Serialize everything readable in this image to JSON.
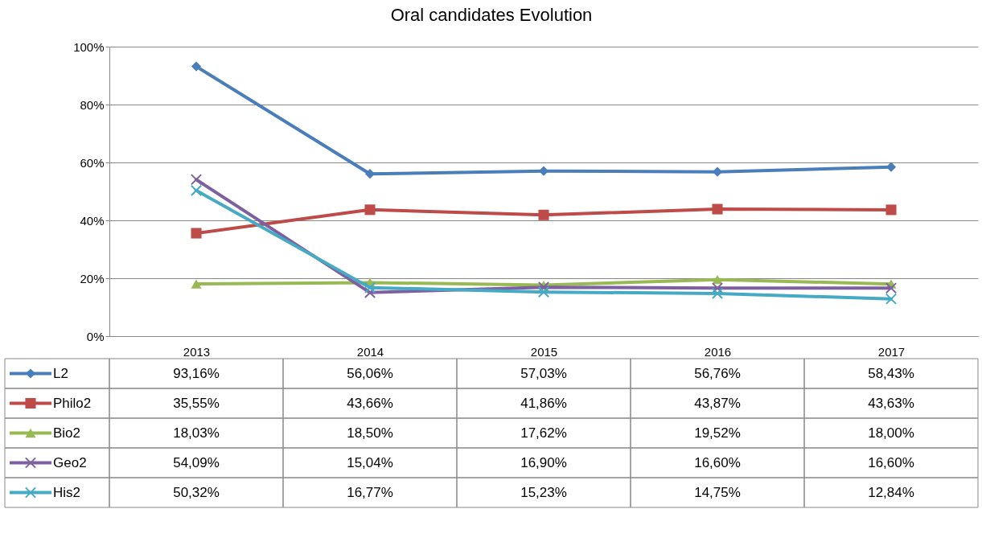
{
  "chart_data": {
    "type": "line",
    "title": "Oral candidates Evolution",
    "categories": [
      "2013",
      "2014",
      "2015",
      "2016",
      "2017"
    ],
    "series": [
      {
        "name": "L2",
        "color": "#4a7ebb",
        "marker": "diamond",
        "values": [
          93.16,
          56.06,
          57.03,
          56.76,
          58.43
        ],
        "value_labels": [
          "93,16%",
          "56,06%",
          "57,03%",
          "56,76%",
          "58,43%"
        ]
      },
      {
        "name": "Philo2",
        "color": "#be4b48",
        "marker": "square",
        "values": [
          35.55,
          43.66,
          41.86,
          43.87,
          43.63
        ],
        "value_labels": [
          "35,55%",
          "43,66%",
          "41,86%",
          "43,87%",
          "43,63%"
        ]
      },
      {
        "name": "Bio2",
        "color": "#98b954",
        "marker": "triangle",
        "values": [
          18.03,
          18.5,
          17.62,
          19.52,
          18.0
        ],
        "value_labels": [
          "18,03%",
          "18,50%",
          "17,62%",
          "19,52%",
          "18,00%"
        ]
      },
      {
        "name": "Geo2",
        "color": "#7d60a0",
        "marker": "cross",
        "values": [
          54.09,
          15.04,
          16.9,
          16.6,
          16.6
        ],
        "value_labels": [
          "54,09%",
          "15,04%",
          "16,90%",
          "16,60%",
          "16,60%"
        ]
      },
      {
        "name": "His2",
        "color": "#46aac5",
        "marker": "cross",
        "values": [
          50.32,
          16.77,
          15.23,
          14.75,
          12.84
        ],
        "value_labels": [
          "50,32%",
          "16,77%",
          "15,23%",
          "14,75%",
          "12,84%"
        ]
      }
    ],
    "ylim": [
      0,
      100
    ],
    "yticks": [
      {
        "value": 0,
        "label": "0%"
      },
      {
        "value": 20,
        "label": "20%"
      },
      {
        "value": 40,
        "label": "40%"
      },
      {
        "value": 60,
        "label": "60%"
      },
      {
        "value": 80,
        "label": "80%"
      },
      {
        "value": 100,
        "label": "100%"
      }
    ],
    "grid": "y",
    "legend": "bottom",
    "line_style": "solid"
  }
}
